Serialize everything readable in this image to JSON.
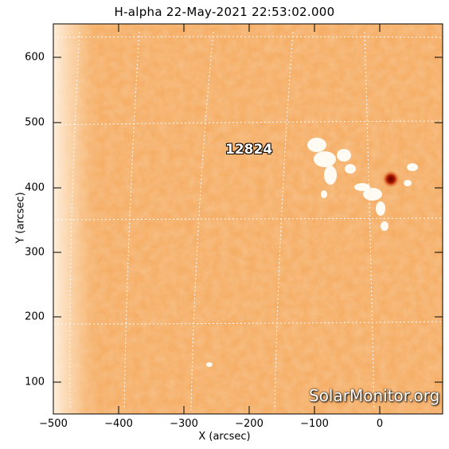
{
  "title": "H-alpha 22-May-2021 22:53:02.000",
  "x_axis": {
    "label": "X (arcsec)",
    "ticks": [
      "−500",
      "−400",
      "−300",
      "−200",
      "−100",
      "0"
    ]
  },
  "y_axis": {
    "label": "Y (arcsec)",
    "ticks": [
      "600",
      "500",
      "400",
      "300",
      "200",
      "100"
    ]
  },
  "region": {
    "number": "12824"
  },
  "watermark": "SolarMonitor.org",
  "colors": {
    "plot_bg": "#f7b874",
    "grid": "#ffffff",
    "sunspot": "#8a1000"
  }
}
